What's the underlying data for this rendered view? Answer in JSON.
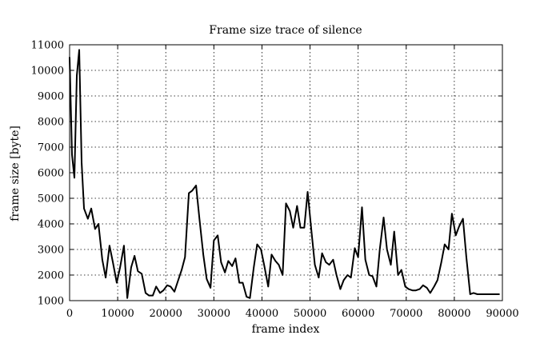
{
  "chart_data": {
    "type": "line",
    "title": "Frame size trace of silence",
    "xlabel": "frame index",
    "ylabel": "frame size [byte]",
    "xlim": [
      0,
      90000
    ],
    "ylim": [
      1000,
      11000
    ],
    "xticks": [
      0,
      10000,
      20000,
      30000,
      40000,
      50000,
      60000,
      70000,
      80000,
      90000
    ],
    "yticks": [
      1000,
      2000,
      3000,
      4000,
      5000,
      6000,
      7000,
      8000,
      9000,
      10000,
      11000
    ],
    "grid": true,
    "legend": "none",
    "line_color": "#000000",
    "series": [
      {
        "x": [
          0,
          500,
          1000,
          1500,
          2000,
          2500,
          3000,
          3800,
          4500,
          5300,
          6000,
          6800,
          7500,
          8300,
          9000,
          9800,
          10500,
          11300,
          12000,
          12800,
          13500,
          14200,
          15000,
          15800,
          16500,
          17300,
          18000,
          18800,
          19500,
          20300,
          21000,
          21800,
          22500,
          23300,
          24000,
          24800,
          25500,
          26300,
          27000,
          27800,
          28500,
          29300,
          30000,
          30800,
          31500,
          32300,
          33000,
          33800,
          34500,
          35300,
          36000,
          36800,
          37500,
          38300,
          39000,
          39800,
          40500,
          41300,
          42000,
          42800,
          43500,
          44300,
          45000,
          45800,
          46500,
          47300,
          48000,
          48800,
          49500,
          50300,
          51000,
          51800,
          52500,
          53300,
          54000,
          54800,
          55500,
          56300,
          57000,
          57800,
          58500,
          59300,
          60000,
          60800,
          61500,
          62300,
          63000,
          63800,
          64500,
          65300,
          66000,
          66800,
          67500,
          68300,
          69000,
          69800,
          70500,
          71300,
          72000,
          72800,
          73500,
          74300,
          75000,
          75800,
          76500,
          77300,
          78000,
          78800,
          79500,
          80300,
          81000,
          81800,
          82500,
          83300,
          84000,
          84800,
          85500,
          86300,
          87000,
          87800,
          88500,
          89300
        ],
        "y": [
          10500,
          6700,
          5800,
          9800,
          10800,
          6400,
          4600,
          4200,
          4600,
          3800,
          4000,
          2600,
          1900,
          3150,
          2500,
          1700,
          2300,
          3150,
          1100,
          2300,
          2750,
          2150,
          2050,
          1300,
          1200,
          1200,
          1550,
          1300,
          1400,
          1600,
          1550,
          1350,
          1750,
          2200,
          2700,
          5200,
          5300,
          5500,
          4200,
          2800,
          1850,
          1500,
          3350,
          3550,
          2500,
          2100,
          2550,
          2350,
          2650,
          1700,
          1700,
          1150,
          1100,
          2300,
          3200,
          3000,
          2350,
          1550,
          2800,
          2550,
          2400,
          2000,
          4800,
          4500,
          3850,
          4700,
          3850,
          3850,
          5250,
          3700,
          2400,
          1900,
          2850,
          2500,
          2400,
          2600,
          2000,
          1450,
          1800,
          2000,
          1900,
          3050,
          2700,
          4650,
          2600,
          2000,
          1950,
          1550,
          3000,
          4250,
          3000,
          2400,
          3700,
          2000,
          2200,
          1550,
          1450,
          1400,
          1400,
          1450,
          1600,
          1500,
          1300,
          1550,
          1800,
          2500,
          3200,
          3000,
          4400,
          3550,
          3900,
          4200,
          2700,
          1250,
          1300,
          1250,
          1250,
          1250,
          1250,
          1250,
          1250,
          1250
        ]
      }
    ]
  }
}
